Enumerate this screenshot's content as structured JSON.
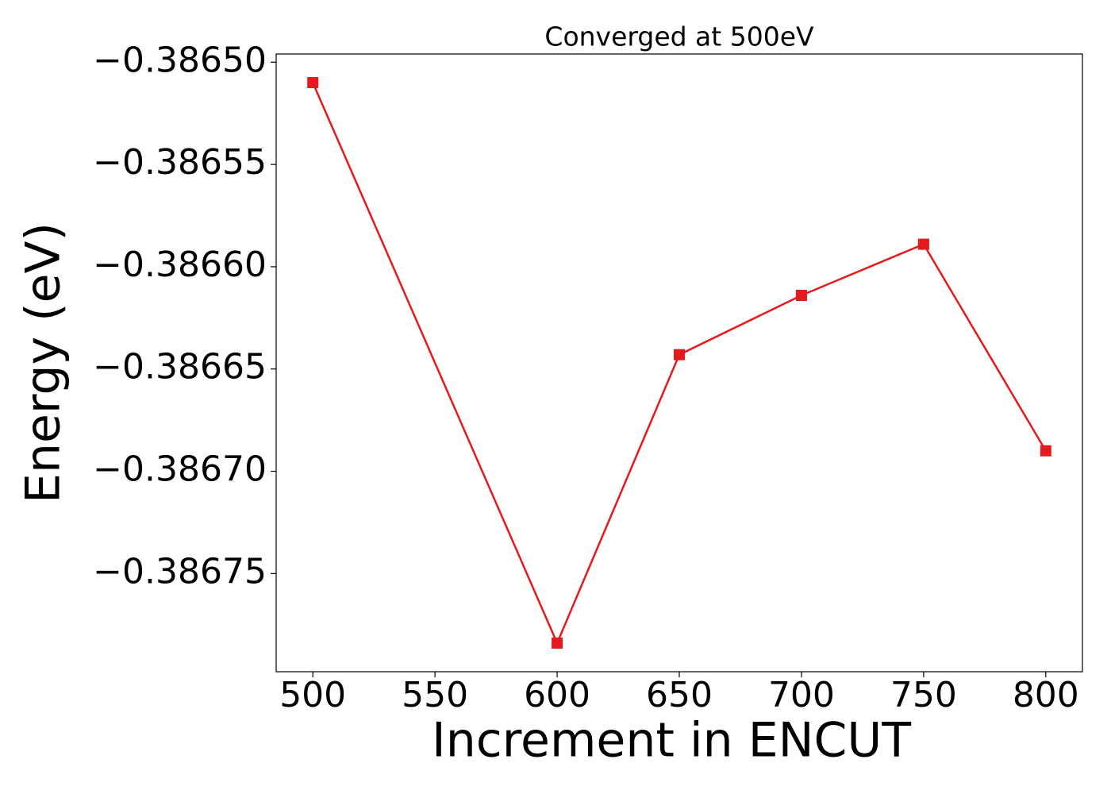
{
  "chart_data": {
    "type": "line",
    "title": "Converged at 500eV",
    "xlabel": "Increment in ENCUT",
    "ylabel": "Energy (eV)",
    "x": [
      500,
      600,
      650,
      700,
      750,
      800
    ],
    "series": [
      {
        "color": "#e41a1c",
        "marker": "square",
        "values": [
          -0.38651,
          -0.386784,
          -0.386643,
          -0.386614,
          -0.386589,
          -0.38669
        ]
      }
    ],
    "xlim": [
      485,
      815
    ],
    "xticks": [
      500,
      550,
      600,
      650,
      700,
      750,
      800
    ],
    "ylim": [
      -0.386798,
      -0.386496
    ],
    "yticks": [
      {
        "value": -0.3865,
        "label": "−0.38650"
      },
      {
        "value": -0.38655,
        "label": "−0.38655"
      },
      {
        "value": -0.3866,
        "label": "−0.38660"
      },
      {
        "value": -0.38665,
        "label": "−0.38665"
      },
      {
        "value": -0.3867,
        "label": "−0.38670"
      },
      {
        "value": -0.38675,
        "label": "−0.38675"
      }
    ],
    "grid": false
  }
}
